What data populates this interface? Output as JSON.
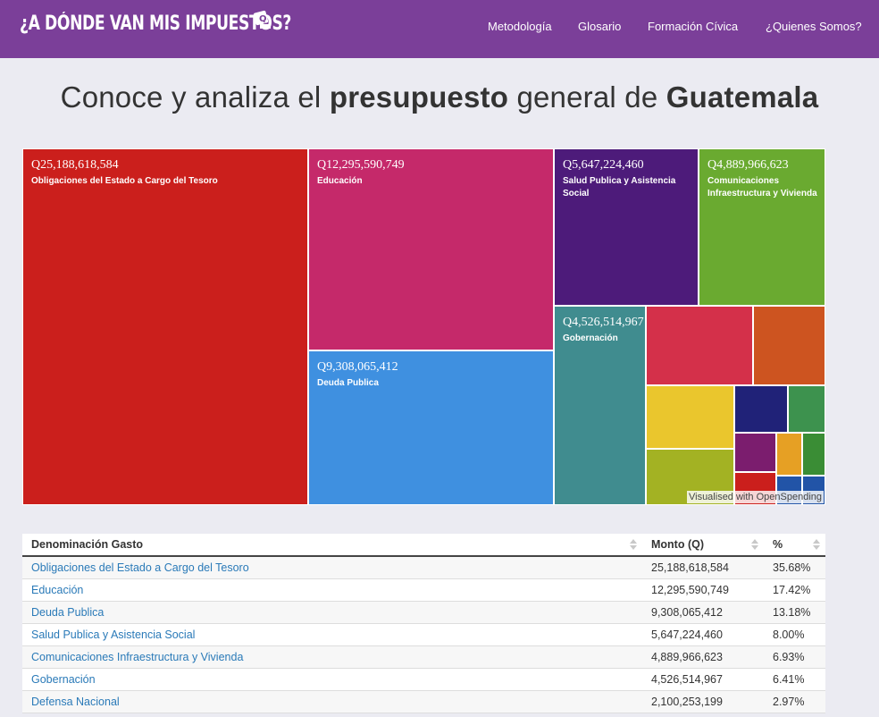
{
  "header": {
    "logo_text": "¿A DÓNDE VAN MIS IMPUESTOS?",
    "logo_badge_text": "Q",
    "nav": [
      "Metodología",
      "Glosario",
      "Formación Cívica",
      "¿Quienes Somos?"
    ]
  },
  "hero": {
    "pre": "Conoce y analiza el ",
    "b1": "presupuesto",
    "mid": " general de ",
    "b2": "Guatemala"
  },
  "treemap": {
    "credit": "Visualised with OpenSpending",
    "tiles": [
      {
        "amount": "Q25,188,618,584",
        "label": "Obligaciones del Estado a Cargo del Tesoro",
        "color": "#cb1f1c"
      },
      {
        "amount": "Q12,295,590,749",
        "label": "Educación",
        "color": "#c5296a"
      },
      {
        "amount": "Q9,308,065,412",
        "label": "Deuda Publica",
        "color": "#3f90e0"
      },
      {
        "amount": "Q5,647,224,460",
        "label": "Salud Publica y Asistencia Social",
        "color": "#4d1b7a"
      },
      {
        "amount": "Q4,889,966,623",
        "label": "Comunicaciones Infraestructura y Vivienda",
        "color": "#6aaa30"
      },
      {
        "amount": "Q4,526,514,967",
        "label": "Gobernación",
        "color": "#408c8f"
      }
    ],
    "small_colors": [
      "#d4304a",
      "#cd5420",
      "#eac62d",
      "#202278",
      "#3d924e",
      "#a3b223",
      "#7b1d6e",
      "#e6a024",
      "#3a8d35",
      "#cb1f1c",
      "#2254a7",
      "#2254a7"
    ]
  },
  "table": {
    "headers": [
      "Denominación Gasto",
      "Monto (Q)",
      "%"
    ],
    "rows": [
      [
        "Obligaciones del Estado a Cargo del Tesoro",
        "25,188,618,584",
        "35.68%"
      ],
      [
        "Educación",
        "12,295,590,749",
        "17.42%"
      ],
      [
        "Deuda Publica",
        "9,308,065,412",
        "13.18%"
      ],
      [
        "Salud Publica y Asistencia Social",
        "5,647,224,460",
        "8.00%"
      ],
      [
        "Comunicaciones Infraestructura y Vivienda",
        "4,889,966,623",
        "6.93%"
      ],
      [
        "Gobernación",
        "4,526,514,967",
        "6.41%"
      ],
      [
        "Defensa Nacional",
        "2,100,253,199",
        "2.97%"
      ]
    ]
  }
}
